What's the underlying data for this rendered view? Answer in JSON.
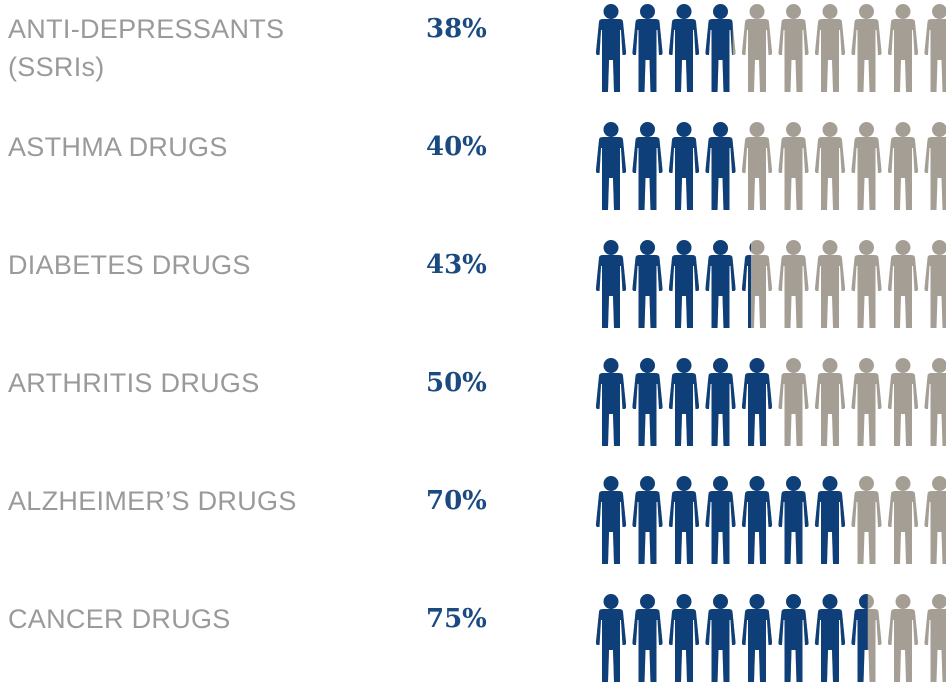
{
  "chart_data": {
    "type": "bar",
    "categories": [
      "ANTI-DEPRESSANTS\n(SSRIs)",
      "ASTHMA DRUGS",
      "DIABETES DRUGS",
      "ARTHRITIS DRUGS",
      "ALZHEIMER’S DRUGS",
      "CANCER DRUGS"
    ],
    "values": [
      38,
      40,
      43,
      50,
      70,
      75
    ],
    "value_labels": [
      "38%",
      "40%",
      "43%",
      "50%",
      "70%",
      "75%"
    ],
    "unit": "%",
    "ylim": [
      0,
      100
    ],
    "title": "",
    "xlabel": "",
    "ylabel": "",
    "colors": {
      "filled": "#0f3f78",
      "empty": "#a59e94",
      "label_text": "#9a9a9a",
      "value_text": "#1a4a80"
    },
    "icon": "person-icon"
  }
}
